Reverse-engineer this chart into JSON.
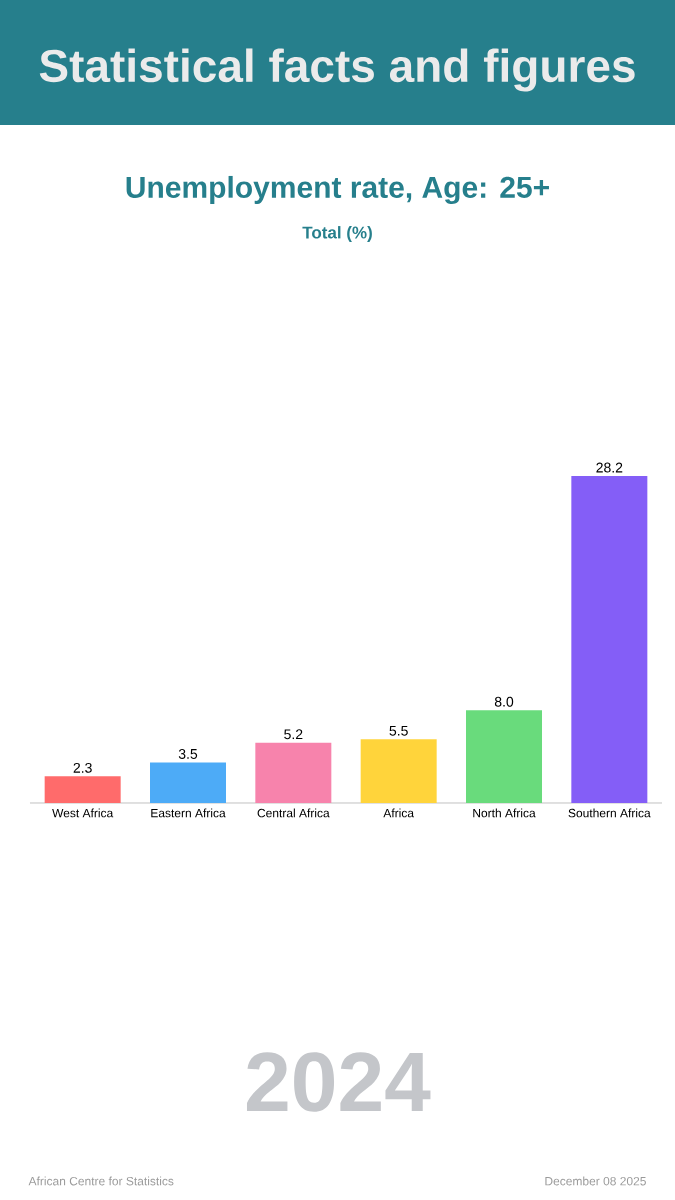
{
  "chart_data": {
    "type": "bar",
    "title": "Unemployment rate, Age: 25+",
    "subtitle": "Total (%)",
    "categories": [
      "West Africa",
      "Eastern Africa",
      "Central Africa",
      "Africa",
      "North Africa",
      "Southern Africa"
    ],
    "values": [
      2.3,
      3.5,
      5.2,
      5.5,
      8.0,
      28.2
    ],
    "colors": [
      "#ff6b6b",
      "#4dabf7",
      "#f783ac",
      "#ffd43b",
      "#69db7c",
      "#845ef7"
    ],
    "value_labels": [
      "2.3",
      "3.5",
      "5.2",
      "5.5",
      "8.0",
      "28.2"
    ],
    "annotations": [
      "Statistical facts and figures",
      "2024",
      "African Centre for Statistics",
      "December 08 2025"
    ]
  }
}
